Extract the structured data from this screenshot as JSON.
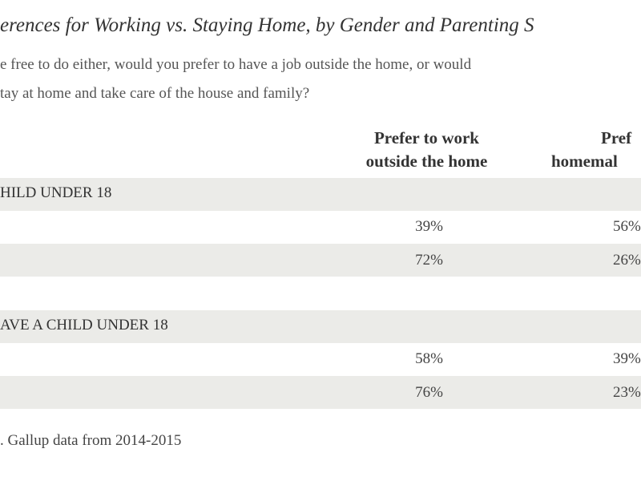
{
  "title": "erences for Working vs. Staying Home, by Gender and Parenting S",
  "question": [
    "e free to do either, would you prefer to have a job outside the home, or would",
    "tay at home and take care of the house and family?"
  ],
  "table": {
    "columns": [
      [
        "Prefer to work",
        "outside the home"
      ],
      [
        "Pref",
        "homemal"
      ]
    ],
    "sections": [
      {
        "label": "HILD UNDER 18",
        "rows": [
          [
            "39%",
            "56%"
          ],
          [
            "72%",
            "26%"
          ]
        ]
      },
      {
        "label": "AVE A CHILD UNDER 18",
        "rows": [
          [
            "58%",
            "39%"
          ],
          [
            "76%",
            "23%"
          ]
        ]
      }
    ]
  },
  "footnote": ". Gallup data from 2014-2015"
}
